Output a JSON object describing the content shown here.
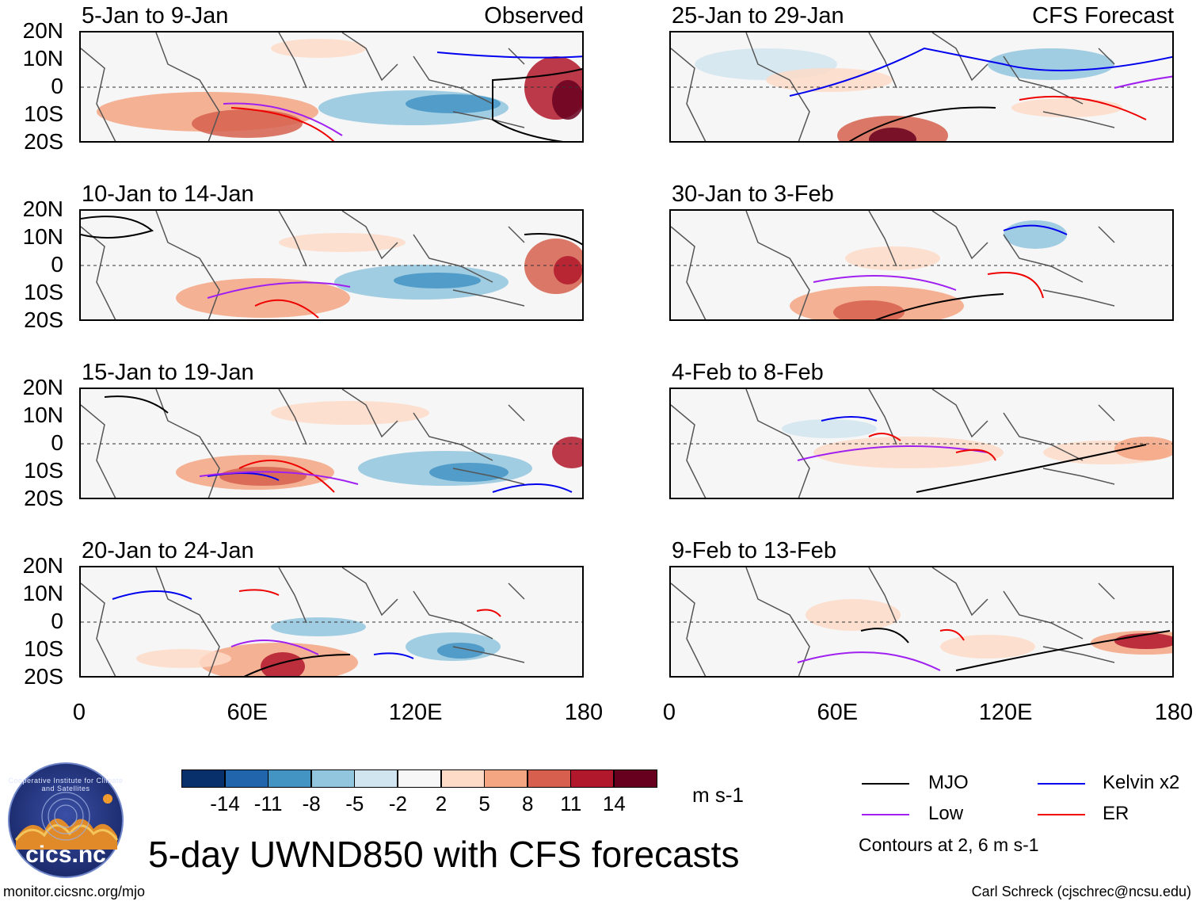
{
  "title": "5-day UWND850 with CFS forecasts",
  "footer_left": "monitor.cicsnc.org/mjo",
  "footer_right": "Carl Schreck (cjschrec@ncsu.edu)",
  "logo": {
    "text": "cics.nc",
    "ring_text": "Cooperative Institute for Climate and Satellites"
  },
  "panels": [
    {
      "title": "5-Jan to 9-Jan",
      "tag": "Observed"
    },
    {
      "title": "25-Jan to 29-Jan",
      "tag": "CFS Forecast"
    },
    {
      "title": "10-Jan to 14-Jan",
      "tag": ""
    },
    {
      "title": "30-Jan to 3-Feb",
      "tag": ""
    },
    {
      "title": "15-Jan to 19-Jan",
      "tag": ""
    },
    {
      "title": "4-Feb to 8-Feb",
      "tag": ""
    },
    {
      "title": "20-Jan to 24-Jan",
      "tag": ""
    },
    {
      "title": "9-Feb to 13-Feb",
      "tag": ""
    }
  ],
  "lat_labels": [
    "20N",
    "10N",
    "0",
    "10S",
    "20S"
  ],
  "lon_labels": [
    "0",
    "60E",
    "120E",
    "180"
  ],
  "colorbar": {
    "units": "m s-1",
    "labels": [
      "-14",
      "-11",
      "-8",
      "-5",
      "-2",
      "2",
      "5",
      "8",
      "11",
      "14"
    ],
    "colors": [
      "#08306b",
      "#2166ac",
      "#4393c3",
      "#92c5de",
      "#d1e5f0",
      "#f7f7f7",
      "#fddbc7",
      "#f4a582",
      "#d6604d",
      "#b2182b",
      "#67001f"
    ]
  },
  "legend": {
    "items": [
      {
        "label": "MJO",
        "color": "#000000"
      },
      {
        "label": "Kelvin x2",
        "color": "#0000ee"
      },
      {
        "label": "Low",
        "color": "#a020f0"
      },
      {
        "label": "ER",
        "color": "#ee0000"
      }
    ],
    "note": "Contours at 2, 6 m s-1"
  }
}
